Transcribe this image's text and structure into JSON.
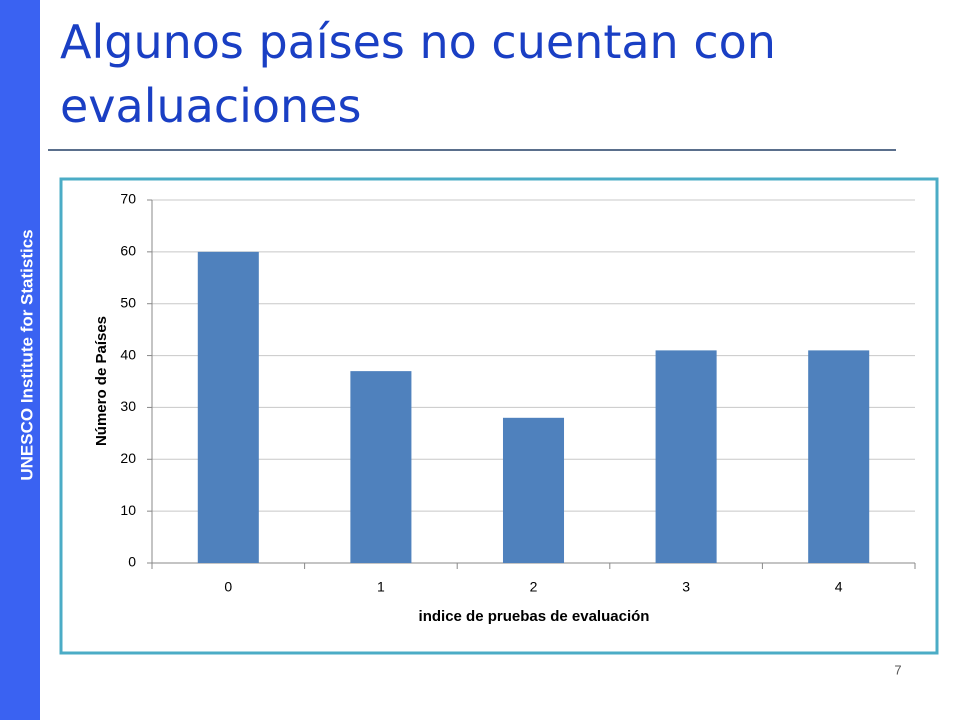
{
  "slide": {
    "title": "Algunos países no cuentan con evaluaciones",
    "sidebar": "UNESCO Institute for Statistics",
    "page_number": "7"
  },
  "chart_data": {
    "type": "bar",
    "categories": [
      "0",
      "1",
      "2",
      "3",
      "4"
    ],
    "values": [
      60,
      37,
      28,
      41,
      41
    ],
    "color": "#4f81bd",
    "x_label": "indice de pruebas de evaluación",
    "y_label": "Número de Países",
    "ylim": [
      0,
      70
    ],
    "yticks": [
      0,
      10,
      20,
      30,
      40,
      50,
      60,
      70
    ],
    "grid": true
  }
}
